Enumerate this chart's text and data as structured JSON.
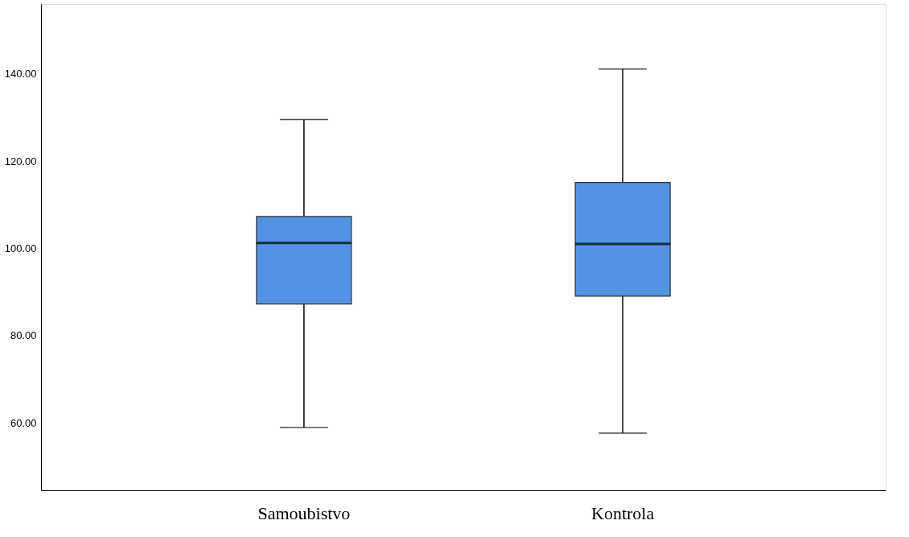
{
  "chart_data": {
    "type": "box",
    "categories": [
      "Samoubistvo",
      "Kontrola"
    ],
    "boxes": [
      {
        "low": 58.9,
        "q1": 87.2,
        "median": 101.2,
        "q3": 107.3,
        "high": 129.5
      },
      {
        "low": 57.6,
        "q1": 89.0,
        "median": 101.0,
        "q3": 115.1,
        "high": 141.1
      }
    ],
    "color": "#5294e2",
    "ylim": [
      44.5,
      156
    ],
    "yticks": [
      {
        "value": 60,
        "label": "60.00"
      },
      {
        "value": 80,
        "label": "80.00"
      },
      {
        "value": 100,
        "label": "100.00"
      },
      {
        "value": 120,
        "label": "120.00"
      },
      {
        "value": 140,
        "label": "140.00"
      }
    ],
    "grid": false
  }
}
